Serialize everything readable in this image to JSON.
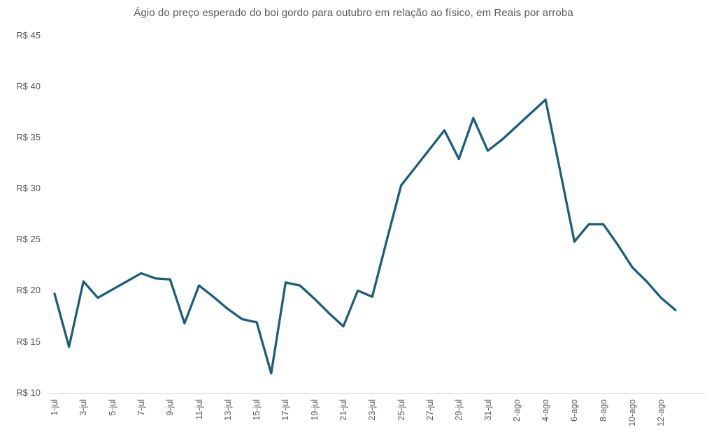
{
  "title": "Ágio do preço esperado do boi gordo para outubro em relação ao físico, em Reais por arroba",
  "colors": {
    "line": "#1B5E7D",
    "text": "#595959",
    "axis_line": "#D9D9D9",
    "background": "#FFFFFF"
  },
  "chart_data": {
    "type": "line",
    "title": "Ágio do preço esperado do boi gordo para outubro em relação ao físico, em Reais por arroba",
    "xlabel": "",
    "ylabel": "",
    "ylabel_prefix": "R$ ",
    "ylim": [
      10,
      45
    ],
    "y_ticks": [
      45,
      40,
      35,
      30,
      25,
      20,
      15,
      10
    ],
    "grid": false,
    "legend": "none",
    "line_color": "#1B5E7D",
    "x": [
      "1-jul",
      "2-jul",
      "3-jul",
      "4-jul",
      "5-jul",
      "6-jul",
      "7-jul",
      "8-jul",
      "9-jul",
      "10-jul",
      "11-jul",
      "12-jul",
      "13-jul",
      "14-jul",
      "15-jul",
      "16-jul",
      "17-jul",
      "18-jul",
      "19-jul",
      "20-jul",
      "21-jul",
      "22-jul",
      "23-jul",
      "24-jul",
      "25-jul",
      "26-jul",
      "27-jul",
      "28-jul",
      "29-jul",
      "30-jul",
      "31-jul",
      "1-ago",
      "2-ago",
      "3-ago",
      "4-ago",
      "5-ago",
      "6-ago",
      "7-ago",
      "8-ago",
      "9-ago",
      "10-ago",
      "11-ago",
      "12-ago",
      "13-ago"
    ],
    "values": [
      19.7,
      14.5,
      20.9,
      19.3,
      20.1,
      20.9,
      21.7,
      21.2,
      21.1,
      16.8,
      20.5,
      19.4,
      18.2,
      17.2,
      16.9,
      11.9,
      20.8,
      20.5,
      19.2,
      17.8,
      16.5,
      20.0,
      19.4,
      24.9,
      30.3,
      32.1,
      33.9,
      35.7,
      32.9,
      36.9,
      33.7,
      34.8,
      36.1,
      37.4,
      38.7,
      31.8,
      24.8,
      26.5,
      26.5,
      24.5,
      22.3,
      20.9,
      19.3,
      18.1
    ],
    "x_tick_labels": [
      "1-jul",
      "3-jul",
      "5-jul",
      "7-jul",
      "9-jul",
      "11-jul",
      "13-jul",
      "15-jul",
      "17-jul",
      "19-jul",
      "21-jul",
      "23-jul",
      "25-jul",
      "27-jul",
      "29-jul",
      "31-jul",
      "2-ago",
      "4-ago",
      "6-ago",
      "8-ago",
      "10-ago",
      "12-ago"
    ],
    "x_tick_every": 2
  }
}
